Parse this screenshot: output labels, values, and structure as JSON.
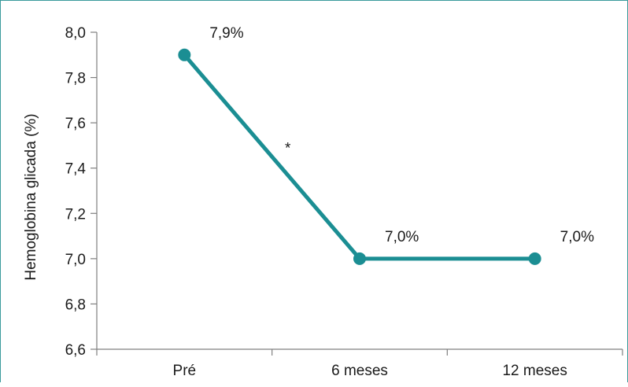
{
  "chart_data": {
    "type": "line",
    "title": "",
    "xlabel": "",
    "ylabel": "Hemoglobina glicada (%)",
    "categories": [
      "Pré",
      "6 meses",
      "12 meses"
    ],
    "series": [
      {
        "values": [
          7.9,
          7.0,
          7.0
        ],
        "data_labels": [
          "7,9%",
          "7,0%",
          "7,0%"
        ],
        "color": "#1b8e93"
      }
    ],
    "ylim": [
      6.6,
      8.0
    ],
    "yticks": [
      6.6,
      6.8,
      7.0,
      7.2,
      7.4,
      7.6,
      7.8,
      8.0
    ],
    "ytick_labels": [
      "6,6",
      "6,8",
      "7,0",
      "7,2",
      "7,4",
      "7,6",
      "7,8",
      "8,0"
    ],
    "annotations": [
      {
        "text": "*",
        "between": [
          "Pré",
          "6 meses"
        ]
      }
    ],
    "grid": false,
    "legend": "none",
    "axis_color": "#7f7f7f",
    "frame_color": "#3a9a9c"
  }
}
